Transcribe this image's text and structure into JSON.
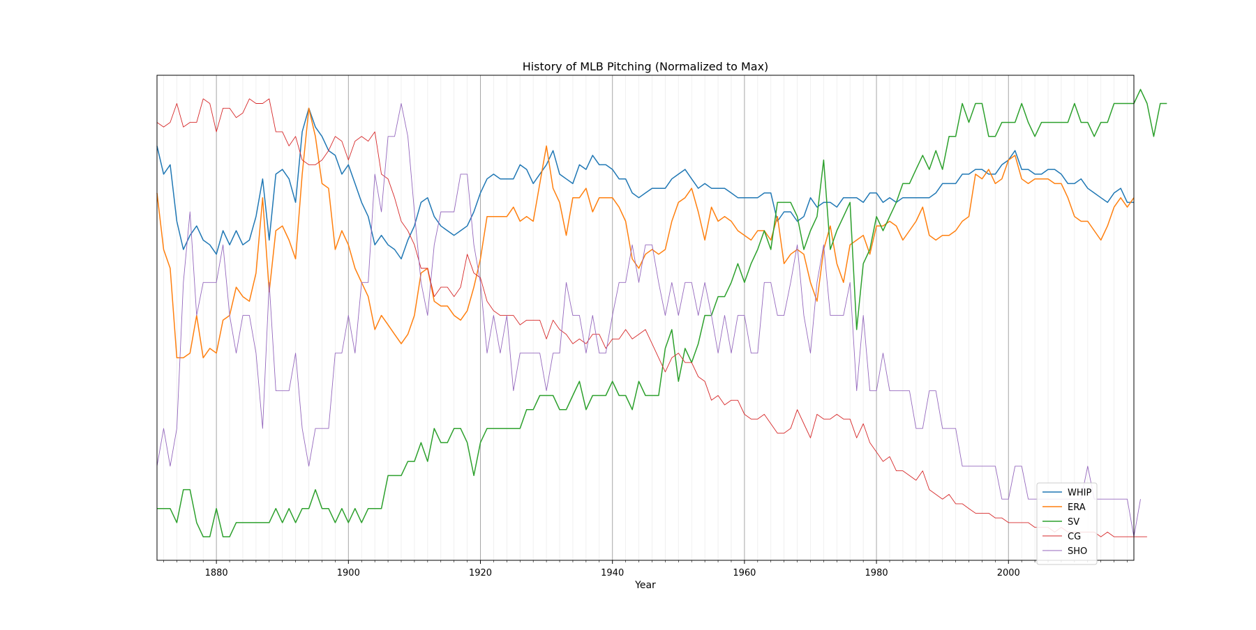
{
  "chart_data": {
    "type": "line",
    "title": "History of MLB Pitching (Normalized to Max)",
    "xlabel": "Year",
    "ylabel": "",
    "xlim": [
      1871,
      2019
    ],
    "ylim": [
      0.0,
      1.03
    ],
    "x_ticks": [
      1880,
      1900,
      1920,
      1940,
      1960,
      1980,
      2000
    ],
    "y_ticks_shown": false,
    "grid": "vertical lines only (major every 20 years, minor every 2 years)",
    "legend_position": "lower-right",
    "x_start": 1871,
    "x_step": 1,
    "colors": {
      "WHIP": "#1f77b4",
      "ERA": "#ff7f0e",
      "SV": "#2ca02c",
      "CG": "#d62728",
      "SHO": "#9467bd"
    },
    "series": [
      {
        "name": "WHIP",
        "values": [
          0.88,
          0.82,
          0.84,
          0.72,
          0.66,
          0.69,
          0.71,
          0.68,
          0.67,
          0.65,
          0.7,
          0.67,
          0.7,
          0.67,
          0.68,
          0.73,
          0.81,
          0.68,
          0.82,
          0.83,
          0.81,
          0.76,
          0.91,
          0.96,
          0.92,
          0.9,
          0.87,
          0.86,
          0.82,
          0.84,
          0.8,
          0.76,
          0.73,
          0.67,
          0.69,
          0.67,
          0.66,
          0.64,
          0.68,
          0.71,
          0.76,
          0.77,
          0.73,
          0.71,
          0.7,
          0.69,
          0.7,
          0.71,
          0.74,
          0.78,
          0.81,
          0.82,
          0.81,
          0.81,
          0.81,
          0.84,
          0.83,
          0.8,
          0.82,
          0.84,
          0.87,
          0.82,
          0.81,
          0.8,
          0.84,
          0.83,
          0.86,
          0.84,
          0.84,
          0.83,
          0.81,
          0.81,
          0.78,
          0.77,
          0.78,
          0.79,
          0.79,
          0.79,
          0.81,
          0.82,
          0.83,
          0.81,
          0.79,
          0.8,
          0.79,
          0.79,
          0.79,
          0.78,
          0.77,
          0.77,
          0.77,
          0.77,
          0.78,
          0.78,
          0.72,
          0.74,
          0.74,
          0.72,
          0.73,
          0.77,
          0.75,
          0.76,
          0.76,
          0.75,
          0.77,
          0.77,
          0.77,
          0.76,
          0.78,
          0.78,
          0.76,
          0.77,
          0.76,
          0.77,
          0.77,
          0.77,
          0.77,
          0.77,
          0.78,
          0.8,
          0.8,
          0.8,
          0.82,
          0.82,
          0.83,
          0.83,
          0.82,
          0.82,
          0.84,
          0.85,
          0.87,
          0.83,
          0.83,
          0.82,
          0.82,
          0.83,
          0.83,
          0.82,
          0.8,
          0.8,
          0.81,
          0.79,
          0.78,
          0.77,
          0.76,
          0.78,
          0.79,
          0.76,
          0.76
        ]
      },
      {
        "name": "ERA",
        "values": [
          0.78,
          0.66,
          0.62,
          0.43,
          0.43,
          0.44,
          0.52,
          0.43,
          0.45,
          0.44,
          0.51,
          0.52,
          0.58,
          0.56,
          0.55,
          0.61,
          0.77,
          0.57,
          0.7,
          0.71,
          0.68,
          0.64,
          0.82,
          0.96,
          0.9,
          0.8,
          0.79,
          0.66,
          0.7,
          0.67,
          0.62,
          0.59,
          0.56,
          0.49,
          0.52,
          0.5,
          0.48,
          0.46,
          0.48,
          0.52,
          0.61,
          0.62,
          0.55,
          0.54,
          0.54,
          0.52,
          0.51,
          0.53,
          0.58,
          0.64,
          0.73,
          0.73,
          0.73,
          0.73,
          0.75,
          0.72,
          0.73,
          0.72,
          0.8,
          0.88,
          0.79,
          0.76,
          0.69,
          0.77,
          0.77,
          0.79,
          0.74,
          0.77,
          0.77,
          0.77,
          0.75,
          0.72,
          0.64,
          0.62,
          0.65,
          0.66,
          0.65,
          0.66,
          0.72,
          0.76,
          0.77,
          0.79,
          0.74,
          0.68,
          0.75,
          0.72,
          0.73,
          0.72,
          0.7,
          0.69,
          0.68,
          0.7,
          0.7,
          0.68,
          0.73,
          0.63,
          0.65,
          0.66,
          0.65,
          0.59,
          0.55,
          0.66,
          0.71,
          0.63,
          0.59,
          0.67,
          0.68,
          0.69,
          0.65,
          0.71,
          0.71,
          0.72,
          0.71,
          0.68,
          0.7,
          0.72,
          0.75,
          0.69,
          0.68,
          0.69,
          0.69,
          0.7,
          0.72,
          0.73,
          0.82,
          0.81,
          0.83,
          0.8,
          0.81,
          0.85,
          0.86,
          0.81,
          0.8,
          0.81,
          0.81,
          0.81,
          0.8,
          0.8,
          0.77,
          0.73,
          0.72,
          0.72,
          0.7,
          0.68,
          0.71,
          0.75,
          0.77,
          0.75,
          0.77
        ]
      },
      {
        "name": "SV",
        "values": [
          0.11,
          0.11,
          0.11,
          0.08,
          0.15,
          0.15,
          0.08,
          0.05,
          0.05,
          0.11,
          0.05,
          0.05,
          0.08,
          0.08,
          0.08,
          0.08,
          0.08,
          0.08,
          0.11,
          0.08,
          0.11,
          0.08,
          0.11,
          0.11,
          0.15,
          0.11,
          0.11,
          0.08,
          0.11,
          0.08,
          0.11,
          0.08,
          0.11,
          0.11,
          0.11,
          0.18,
          0.18,
          0.18,
          0.21,
          0.21,
          0.25,
          0.21,
          0.28,
          0.25,
          0.25,
          0.28,
          0.28,
          0.25,
          0.18,
          0.25,
          0.28,
          0.28,
          0.28,
          0.28,
          0.28,
          0.28,
          0.32,
          0.32,
          0.35,
          0.35,
          0.35,
          0.32,
          0.32,
          0.35,
          0.38,
          0.32,
          0.35,
          0.35,
          0.35,
          0.38,
          0.35,
          0.35,
          0.32,
          0.38,
          0.35,
          0.35,
          0.35,
          0.45,
          0.49,
          0.38,
          0.45,
          0.42,
          0.46,
          0.52,
          0.52,
          0.56,
          0.56,
          0.59,
          0.63,
          0.59,
          0.63,
          0.66,
          0.7,
          0.66,
          0.76,
          0.76,
          0.76,
          0.73,
          0.66,
          0.7,
          0.73,
          0.85,
          0.66,
          0.7,
          0.73,
          0.76,
          0.49,
          0.63,
          0.66,
          0.73,
          0.7,
          0.73,
          0.76,
          0.8,
          0.8,
          0.83,
          0.86,
          0.83,
          0.87,
          0.83,
          0.9,
          0.9,
          0.97,
          0.93,
          0.97,
          0.97,
          0.9,
          0.9,
          0.93,
          0.93,
          0.93,
          0.97,
          0.93,
          0.9,
          0.93,
          0.93,
          0.93,
          0.93,
          0.93,
          0.97,
          0.93,
          0.93,
          0.9,
          0.93,
          0.93,
          0.97,
          0.97,
          0.97,
          0.97,
          1.0,
          0.97,
          0.9,
          0.97,
          0.97
        ]
      },
      {
        "name": "CG",
        "values": [
          0.93,
          0.92,
          0.93,
          0.97,
          0.92,
          0.93,
          0.93,
          0.98,
          0.97,
          0.91,
          0.96,
          0.96,
          0.94,
          0.95,
          0.98,
          0.97,
          0.97,
          0.98,
          0.91,
          0.91,
          0.88,
          0.9,
          0.85,
          0.84,
          0.84,
          0.85,
          0.87,
          0.9,
          0.89,
          0.85,
          0.89,
          0.9,
          0.89,
          0.91,
          0.82,
          0.81,
          0.77,
          0.72,
          0.7,
          0.67,
          0.62,
          0.62,
          0.56,
          0.58,
          0.58,
          0.56,
          0.58,
          0.65,
          0.61,
          0.6,
          0.55,
          0.53,
          0.52,
          0.52,
          0.52,
          0.5,
          0.51,
          0.51,
          0.51,
          0.47,
          0.51,
          0.49,
          0.48,
          0.46,
          0.47,
          0.46,
          0.48,
          0.48,
          0.45,
          0.47,
          0.47,
          0.49,
          0.47,
          0.48,
          0.49,
          0.46,
          0.43,
          0.4,
          0.43,
          0.44,
          0.42,
          0.42,
          0.39,
          0.38,
          0.34,
          0.35,
          0.33,
          0.34,
          0.34,
          0.31,
          0.3,
          0.3,
          0.31,
          0.29,
          0.27,
          0.27,
          0.28,
          0.32,
          0.29,
          0.26,
          0.31,
          0.3,
          0.3,
          0.31,
          0.3,
          0.3,
          0.26,
          0.29,
          0.25,
          0.23,
          0.21,
          0.22,
          0.19,
          0.19,
          0.18,
          0.17,
          0.19,
          0.15,
          0.14,
          0.13,
          0.14,
          0.12,
          0.12,
          0.11,
          0.1,
          0.1,
          0.1,
          0.09,
          0.09,
          0.08,
          0.08,
          0.08,
          0.08,
          0.07,
          0.07,
          0.07,
          0.06,
          0.07,
          0.06,
          0.06,
          0.06,
          0.06,
          0.06,
          0.05,
          0.06,
          0.05,
          0.05,
          0.05,
          0.05,
          0.05,
          0.05
        ]
      },
      {
        "name": "SHO",
        "values": [
          0.2,
          0.28,
          0.2,
          0.28,
          0.59,
          0.74,
          0.52,
          0.59,
          0.59,
          0.59,
          0.67,
          0.52,
          0.44,
          0.52,
          0.52,
          0.44,
          0.28,
          0.59,
          0.36,
          0.36,
          0.36,
          0.44,
          0.28,
          0.2,
          0.28,
          0.28,
          0.28,
          0.44,
          0.44,
          0.52,
          0.44,
          0.59,
          0.59,
          0.82,
          0.74,
          0.9,
          0.9,
          0.97,
          0.9,
          0.74,
          0.59,
          0.52,
          0.67,
          0.74,
          0.74,
          0.74,
          0.82,
          0.82,
          0.67,
          0.59,
          0.44,
          0.52,
          0.44,
          0.52,
          0.36,
          0.44,
          0.44,
          0.44,
          0.44,
          0.36,
          0.44,
          0.44,
          0.59,
          0.52,
          0.52,
          0.44,
          0.52,
          0.44,
          0.44,
          0.52,
          0.59,
          0.59,
          0.67,
          0.59,
          0.67,
          0.67,
          0.59,
          0.52,
          0.59,
          0.52,
          0.59,
          0.59,
          0.52,
          0.59,
          0.52,
          0.44,
          0.52,
          0.44,
          0.52,
          0.52,
          0.44,
          0.44,
          0.59,
          0.59,
          0.52,
          0.52,
          0.59,
          0.67,
          0.52,
          0.44,
          0.59,
          0.67,
          0.52,
          0.52,
          0.52,
          0.59,
          0.36,
          0.52,
          0.36,
          0.36,
          0.44,
          0.36,
          0.36,
          0.36,
          0.36,
          0.28,
          0.28,
          0.36,
          0.36,
          0.28,
          0.28,
          0.28,
          0.2,
          0.2,
          0.2,
          0.2,
          0.2,
          0.2,
          0.13,
          0.13,
          0.2,
          0.2,
          0.13,
          0.13,
          0.13,
          0.13,
          0.13,
          0.13,
          0.13,
          0.13,
          0.13,
          0.2,
          0.13,
          0.13,
          0.13,
          0.13,
          0.13,
          0.13,
          0.05,
          0.13
        ]
      }
    ]
  }
}
